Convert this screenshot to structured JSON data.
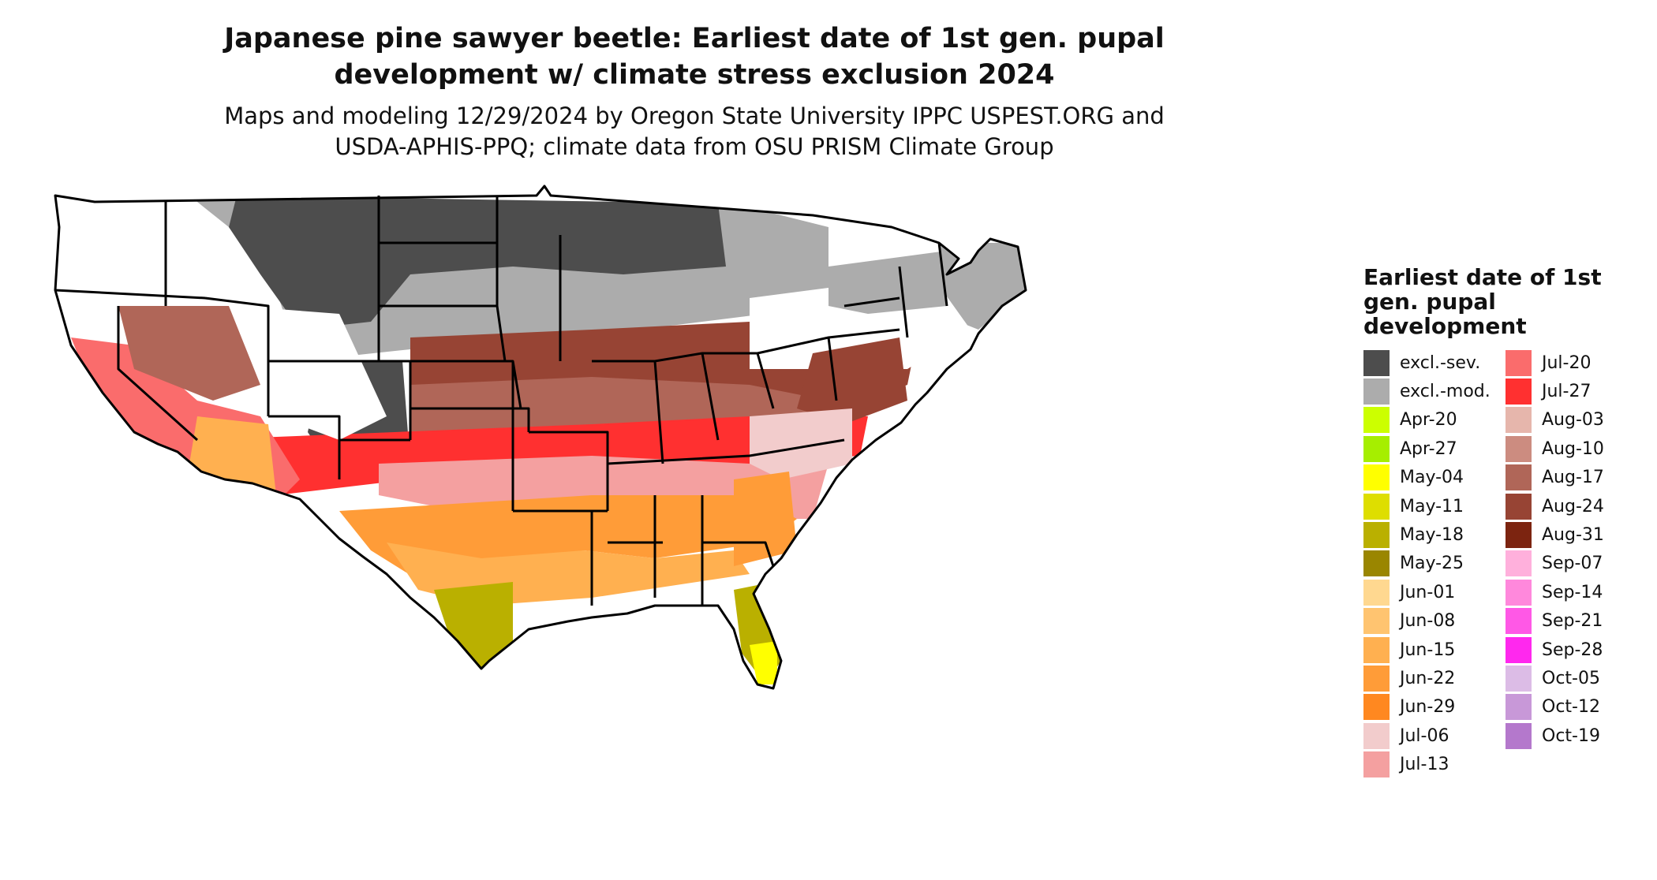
{
  "title_line1": "Japanese pine sawyer beetle: Earliest date of 1st gen. pupal",
  "title_line2": "development w/ climate stress exclusion 2024",
  "subtitle_line1": "Maps and modeling 12/29/2024 by Oregon State University IPPC USPEST.ORG and",
  "subtitle_line2": "USDA-APHIS-PPQ; climate data from OSU PRISM Climate Group",
  "legend": {
    "title": "Earliest date of 1st gen. pupal development",
    "column1": [
      {
        "label": "excl.-sev.",
        "color": "#4d4d4d"
      },
      {
        "label": "excl.-mod.",
        "color": "#acacac"
      },
      {
        "label": "Apr-20",
        "color": "#ccff00"
      },
      {
        "label": "Apr-27",
        "color": "#a6ee00"
      },
      {
        "label": "May-04",
        "color": "#ffff00"
      },
      {
        "label": "May-11",
        "color": "#dede00"
      },
      {
        "label": "May-18",
        "color": "#bab000"
      },
      {
        "label": "May-25",
        "color": "#9a8600"
      },
      {
        "label": "Jun-01",
        "color": "#ffd890"
      },
      {
        "label": "Jun-08",
        "color": "#ffc470"
      },
      {
        "label": "Jun-15",
        "color": "#ffb050"
      },
      {
        "label": "Jun-22",
        "color": "#ff9c38"
      },
      {
        "label": "Jun-29",
        "color": "#ff8820"
      },
      {
        "label": "Jul-06",
        "color": "#f2cccc"
      },
      {
        "label": "Jul-13",
        "color": "#f4a0a0"
      }
    ],
    "column2": [
      {
        "label": "Jul-20",
        "color": "#fa6c6c"
      },
      {
        "label": "Jul-27",
        "color": "#ff3030"
      },
      {
        "label": "Aug-03",
        "color": "#e6b6ac"
      },
      {
        "label": "Aug-10",
        "color": "#cc8c80"
      },
      {
        "label": "Aug-17",
        "color": "#b06658"
      },
      {
        "label": "Aug-24",
        "color": "#974434"
      },
      {
        "label": "Aug-31",
        "color": "#7c2410"
      },
      {
        "label": "Sep-07",
        "color": "#ffb0dc"
      },
      {
        "label": "Sep-14",
        "color": "#ff88dc"
      },
      {
        "label": "Sep-21",
        "color": "#ff58e6"
      },
      {
        "label": "Sep-28",
        "color": "#ff28ee"
      },
      {
        "label": "Oct-05",
        "color": "#dcbce6"
      },
      {
        "label": "Oct-12",
        "color": "#c898d8"
      },
      {
        "label": "Oct-19",
        "color": "#b478cc"
      }
    ]
  }
}
